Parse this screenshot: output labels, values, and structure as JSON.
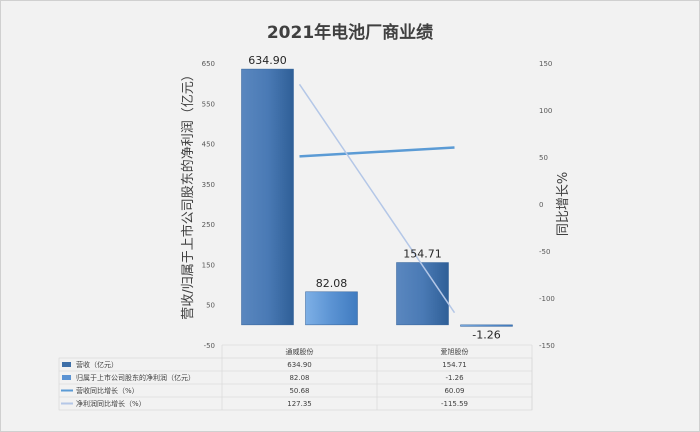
{
  "chart_data": {
    "type": "bar",
    "title": "2021年电池厂商业绩",
    "categories": [
      "通威股份",
      "爱旭股份"
    ],
    "ylabel": "营收/归属于上市公司股东的净利润（亿元）",
    "y2label": "同比增长%",
    "ylim": [
      -50,
      650
    ],
    "yticks": [
      -50,
      50,
      150,
      250,
      350,
      450,
      550,
      650
    ],
    "y2lim": [
      -150,
      150
    ],
    "y2ticks": [
      -150,
      -100,
      -50,
      0,
      50,
      100,
      150
    ],
    "legend_placement": "bottom-table",
    "grid": false,
    "series": [
      {
        "name": "营收（亿元）",
        "kind": "bar",
        "axis": "left",
        "color": "#3e6fa8",
        "values": [
          634.9,
          154.71
        ],
        "labels": [
          "634.90",
          "154.71"
        ],
        "table": [
          "634.90",
          "154.71"
        ]
      },
      {
        "name": "归属于上市公司股东的净利润（亿元）",
        "kind": "bar",
        "axis": "left",
        "color": "#5b93d3",
        "values": [
          82.08,
          -1.26
        ],
        "labels": [
          "82.08",
          "-1.26"
        ],
        "table": [
          "82.08",
          "-1.26"
        ]
      },
      {
        "name": "营收同比增长（%）",
        "kind": "line",
        "axis": "right",
        "color": "#5b9bd5",
        "values": [
          50.68,
          60.09
        ],
        "table": [
          "50.68",
          "60.09"
        ]
      },
      {
        "name": "净利润同比增长（%）",
        "kind": "line",
        "axis": "right",
        "color": "#b4c7e7",
        "values": [
          127.35,
          -115.59
        ],
        "table": [
          "127.35",
          "-115.59"
        ]
      }
    ]
  }
}
